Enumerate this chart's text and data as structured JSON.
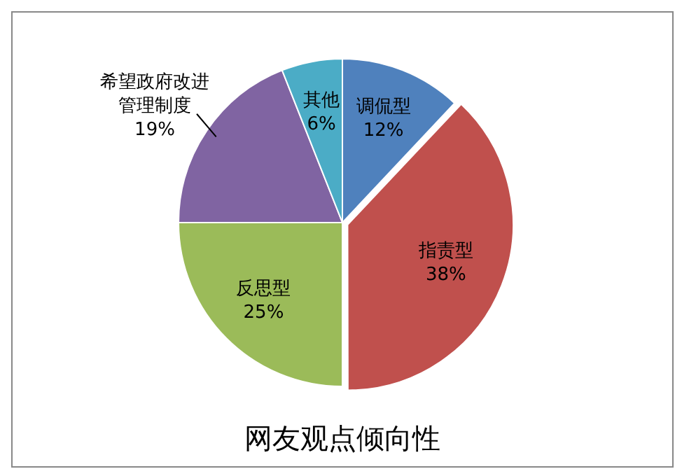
{
  "chart_data": {
    "type": "pie",
    "title": "网友观点倾向性",
    "categories": [
      "调侃型",
      "指责型",
      "反思型",
      "希望政府改进管理制度",
      "其他"
    ],
    "values": [
      12,
      38,
      25,
      19,
      6
    ],
    "value_labels": [
      "12%",
      "38%",
      "25%",
      "19%",
      "6%"
    ],
    "colors": [
      "#4f81bd",
      "#c0504d",
      "#9bbb59",
      "#8064a2",
      "#4bacc6"
    ],
    "legend": false
  }
}
